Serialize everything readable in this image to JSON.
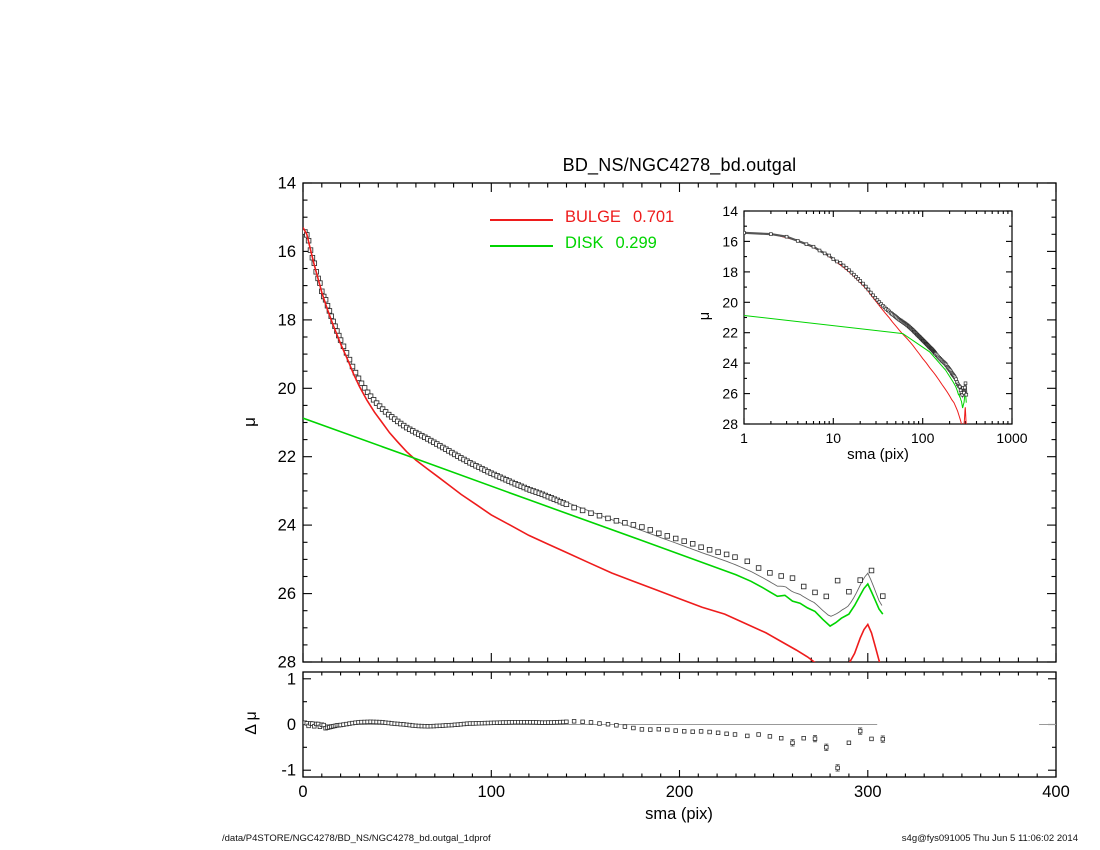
{
  "title": "BD_NS/NGC4278_bd.outgal",
  "footer": {
    "left": "/data/P4STORE/NGC4278/BD_NS/NGC4278_bd.outgal_1dprof",
    "right": "s4g@fys091005  Thu Jun  5 11:06:02 2014"
  },
  "legend": [
    {
      "label": "BULGE",
      "value": "0.701",
      "color": "#ee1c1c"
    },
    {
      "label": "DISK",
      "value": "0.299",
      "color": "#00d400"
    }
  ],
  "chart_data": {
    "type": "line",
    "title": "BD_NS/NGC4278_bd.outgal",
    "main_panel": {
      "xlabel": "sma (pix)",
      "ylabel": "μ",
      "xlim": [
        0,
        400
      ],
      "ylim": [
        28,
        14
      ],
      "xticks": [
        0,
        100,
        200,
        300,
        400
      ],
      "xminor_step": 10,
      "yticks": [
        14,
        16,
        18,
        20,
        22,
        24,
        26,
        28
      ],
      "yminor_step": 0.5,
      "frame_color": "#000000"
    },
    "inset_panel": {
      "xlabel": "sma (pix)",
      "ylabel": "μ",
      "xscale": "log",
      "xlim": [
        1,
        1000
      ],
      "ylim": [
        28,
        14
      ],
      "xticks": [
        1,
        10,
        100,
        1000
      ],
      "xtick_labels": [
        "1",
        "10",
        "100",
        "1000"
      ],
      "yticks": [
        14,
        16,
        18,
        20,
        22,
        24,
        26,
        28
      ],
      "yminor_step": 1
    },
    "residual_panel": {
      "ylabel": "Δ μ",
      "ylim": [
        -1.15,
        1.15
      ],
      "yticks": [
        1,
        0,
        -1
      ],
      "yminor_step": 0.5,
      "xticks": [
        0,
        100,
        200,
        300,
        400
      ],
      "xtick_labels": [
        "0",
        "100",
        "200",
        "300",
        "400"
      ],
      "xminor_step": 10,
      "zero_line_color": "#999999",
      "zero_line_segments": [
        [
          0,
          305
        ],
        [
          391,
          400
        ]
      ]
    },
    "series": {
      "bulge": {
        "name": "BULGE",
        "fraction": 0.701,
        "color": "#ee1c1c",
        "points": [
          [
            0,
            15.3
          ],
          [
            2,
            15.5
          ],
          [
            4,
            15.95
          ],
          [
            6,
            16.4
          ],
          [
            8,
            16.8
          ],
          [
            10,
            17.2
          ],
          [
            13,
            17.7
          ],
          [
            16,
            18.15
          ],
          [
            20,
            18.7
          ],
          [
            24,
            19.2
          ],
          [
            27,
            19.6
          ],
          [
            30,
            19.95
          ],
          [
            34,
            20.35
          ],
          [
            38,
            20.7
          ],
          [
            42,
            21.0
          ],
          [
            46,
            21.3
          ],
          [
            50,
            21.55
          ],
          [
            55,
            21.85
          ],
          [
            60,
            22.1
          ],
          [
            66,
            22.35
          ],
          [
            72,
            22.6
          ],
          [
            78,
            22.85
          ],
          [
            84,
            23.1
          ],
          [
            92,
            23.4
          ],
          [
            100,
            23.7
          ],
          [
            110,
            24.0
          ],
          [
            120,
            24.3
          ],
          [
            130,
            24.55
          ],
          [
            140,
            24.8
          ],
          [
            152,
            25.1
          ],
          [
            164,
            25.4
          ],
          [
            176,
            25.65
          ],
          [
            188,
            25.9
          ],
          [
            200,
            26.15
          ],
          [
            212,
            26.4
          ],
          [
            224,
            26.6
          ],
          [
            236,
            26.9
          ],
          [
            246,
            27.15
          ],
          [
            254,
            27.4
          ],
          [
            262,
            27.65
          ],
          [
            268,
            27.85
          ],
          [
            274,
            28.1
          ],
          [
            280,
            28.3
          ],
          [
            285,
            28.35
          ],
          [
            289,
            28.15
          ],
          [
            293,
            27.75
          ],
          [
            296,
            27.3
          ],
          [
            298,
            27.05
          ],
          [
            300,
            26.9
          ],
          [
            302,
            27.15
          ],
          [
            304,
            27.55
          ],
          [
            306,
            27.95
          ],
          [
            308,
            28.3
          ]
        ]
      },
      "disk": {
        "name": "DISK",
        "fraction": 0.299,
        "color": "#00d400",
        "points": [
          [
            0,
            20.87
          ],
          [
            60,
            22.06
          ],
          [
            120,
            23.26
          ],
          [
            180,
            24.45
          ],
          [
            220,
            25.25
          ],
          [
            230,
            25.45
          ],
          [
            238,
            25.64
          ],
          [
            244,
            25.82
          ],
          [
            248,
            25.95
          ],
          [
            252,
            26.08
          ],
          [
            256,
            26.05
          ],
          [
            260,
            26.22
          ],
          [
            264,
            26.28
          ],
          [
            268,
            26.42
          ],
          [
            272,
            26.52
          ],
          [
            276,
            26.75
          ],
          [
            280,
            26.95
          ],
          [
            283,
            26.85
          ],
          [
            286,
            26.72
          ],
          [
            290,
            26.6
          ],
          [
            293,
            26.35
          ],
          [
            296,
            26.05
          ],
          [
            298,
            25.85
          ],
          [
            300,
            25.72
          ],
          [
            302,
            25.95
          ],
          [
            304,
            26.2
          ],
          [
            306,
            26.45
          ],
          [
            308,
            26.6
          ]
        ]
      },
      "total": {
        "color": "#666666"
      },
      "observed": {
        "marker": "open-square",
        "color": "#2b2b2b",
        "sampling": [
          {
            "from": 1.0,
            "to": 20.0,
            "step": 1.0
          },
          {
            "from": 21.5,
            "to": 140.3,
            "step": 1.6
          },
          {
            "from": 144,
            "to": 230.5,
            "step": 4.5
          },
          {
            "from": 236,
            "to": 308.1,
            "step": 6
          }
        ]
      },
      "residuals": {
        "definition": "data - model",
        "points": [
          [
            0,
            0.02
          ],
          [
            1.5,
            0.05
          ],
          [
            3,
            -0.03
          ],
          [
            4.5,
            0.05
          ],
          [
            6,
            -0.04
          ],
          [
            7.5,
            0.04
          ],
          [
            9,
            -0.05
          ],
          [
            10.5,
            0.02
          ],
          [
            12,
            -0.08
          ],
          [
            14,
            -0.06
          ],
          [
            16,
            -0.04
          ],
          [
            18,
            -0.02
          ],
          [
            20,
            -0.01
          ],
          [
            22,
            0.0
          ],
          [
            26,
            0.03
          ],
          [
            30,
            0.05
          ],
          [
            36,
            0.06
          ],
          [
            42,
            0.05
          ],
          [
            48,
            0.02
          ],
          [
            54,
            0.0
          ],
          [
            60,
            -0.03
          ],
          [
            66,
            -0.04
          ],
          [
            72,
            -0.03
          ],
          [
            80,
            -0.01
          ],
          [
            88,
            0.02
          ],
          [
            96,
            0.03
          ],
          [
            104,
            0.04
          ],
          [
            112,
            0.05
          ],
          [
            120,
            0.05
          ],
          [
            128,
            0.04
          ],
          [
            136,
            0.05
          ],
          [
            144,
            0.07
          ],
          [
            152,
            0.05
          ],
          [
            158,
            0.02
          ],
          [
            164,
            0.0
          ],
          [
            170,
            -0.04
          ],
          [
            176,
            -0.08
          ],
          [
            182,
            -0.12
          ],
          [
            188,
            -0.1
          ],
          [
            194,
            -0.12
          ],
          [
            200,
            -0.14
          ],
          [
            206,
            -0.16
          ],
          [
            212,
            -0.15
          ],
          [
            218,
            -0.17
          ],
          [
            224,
            -0.2
          ],
          [
            230,
            -0.22
          ],
          [
            236,
            -0.25
          ],
          [
            242,
            -0.22
          ],
          [
            248,
            -0.26
          ],
          [
            254,
            -0.3
          ],
          [
            260,
            -0.4
          ],
          [
            266,
            -0.3
          ],
          [
            272,
            -0.31
          ],
          [
            278,
            -0.5
          ],
          [
            282,
            -0.7
          ],
          [
            284,
            -0.95
          ],
          [
            287,
            -1.06
          ],
          [
            290,
            -0.4
          ],
          [
            294,
            -0.15
          ],
          [
            298,
            -0.14
          ],
          [
            300,
            -0.18
          ],
          [
            304,
            -0.45
          ],
          [
            306,
            -0.62
          ],
          [
            308,
            -0.32
          ]
        ],
        "errorbar_radii": [
          260,
          272,
          278,
          284,
          296,
          308
        ],
        "errorbar_size": 0.07
      }
    }
  }
}
